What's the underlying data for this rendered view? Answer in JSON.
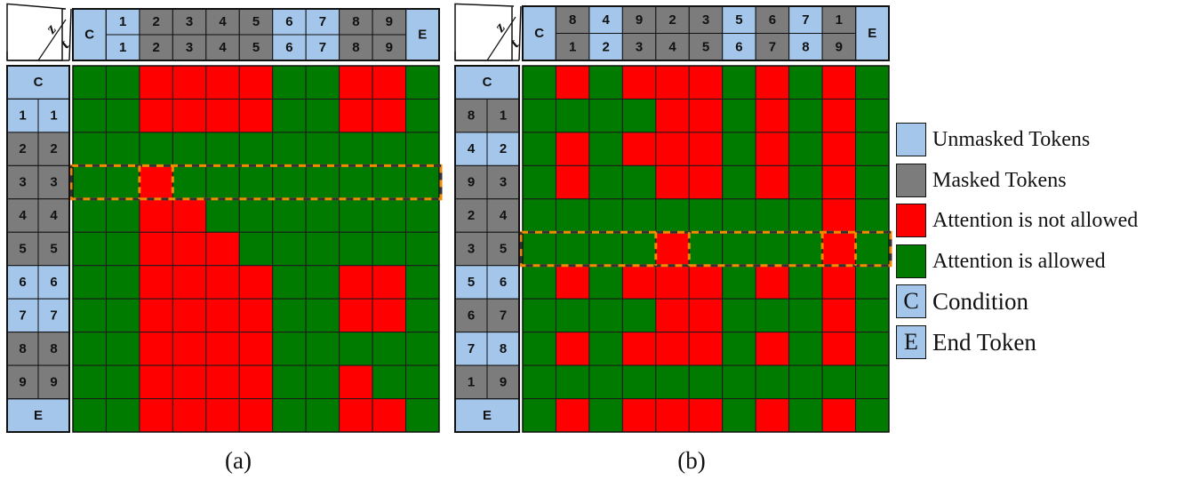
{
  "colors": {
    "unmasked": "#a3c6ea",
    "masked": "#7c7c7c",
    "not_allowed": "#ff0000",
    "allowed": "#007b00",
    "highlight": "#f08a00"
  },
  "axis_labels": {
    "z": "z",
    "t": "t"
  },
  "panels": [
    {
      "caption": "(a)",
      "header": {
        "start": "C",
        "end": "E",
        "z": [
          "1",
          "2",
          "3",
          "4",
          "5",
          "6",
          "7",
          "8",
          "9"
        ],
        "t": [
          "1",
          "2",
          "3",
          "4",
          "5",
          "6",
          "7",
          "8",
          "9"
        ],
        "masked": [
          false,
          true,
          true,
          true,
          true,
          false,
          false,
          true,
          true
        ]
      },
      "rows": {
        "start": "C",
        "end": "E",
        "z": [
          "1",
          "2",
          "3",
          "4",
          "5",
          "6",
          "7",
          "8",
          "9"
        ],
        "t": [
          "1",
          "2",
          "3",
          "4",
          "5",
          "6",
          "7",
          "8",
          "9"
        ],
        "masked": [
          false,
          true,
          true,
          true,
          true,
          false,
          false,
          true,
          true
        ]
      },
      "grid": [
        "GGRRRRGGRRG",
        "GGRRRRGGRRG",
        "GGGGGGGGGGG",
        "GGRGGGGGGGG",
        "GGRRGGGGGGG",
        "GGRRRGGGGGG",
        "GGRRRRGGRRG",
        "GGRRRRGGRRG",
        "GGRRRRGGGGG",
        "GGRRRRGGRGG",
        "GGRRRRGGRRG"
      ],
      "highlight_row": 3
    },
    {
      "caption": "(b)",
      "header": {
        "start": "C",
        "end": "E",
        "z": [
          "8",
          "4",
          "9",
          "2",
          "3",
          "5",
          "6",
          "7",
          "1"
        ],
        "t": [
          "1",
          "2",
          "3",
          "4",
          "5",
          "6",
          "7",
          "8",
          "9"
        ],
        "masked": [
          true,
          false,
          true,
          true,
          true,
          false,
          true,
          false,
          true
        ]
      },
      "rows": {
        "start": "C",
        "end": "E",
        "z": [
          "8",
          "4",
          "9",
          "2",
          "3",
          "5",
          "6",
          "7",
          "1"
        ],
        "t": [
          "1",
          "2",
          "3",
          "4",
          "5",
          "6",
          "7",
          "8",
          "9"
        ],
        "masked": [
          true,
          false,
          true,
          true,
          true,
          false,
          true,
          false,
          true
        ]
      },
      "grid": [
        "GRGRRRGRGRG",
        "GGGGRRGRGRG",
        "GRGRRRGRGRG",
        "GRGGRRGRGRG",
        "GGGGGGGGGRG",
        "GGGGRGGGGRG",
        "GRGRRRGRGRG",
        "GGGGRRGGGRG",
        "GRGRRRGRGRG",
        "GGGGGGGGGGG",
        "GRGRRRGRGRG"
      ],
      "highlight_row": 5
    }
  ],
  "legend": [
    {
      "swatch": "unmasked",
      "glyph": "",
      "label": "Unmasked Tokens"
    },
    {
      "swatch": "masked",
      "glyph": "",
      "label": "Masked Tokens"
    },
    {
      "swatch": "not_allowed",
      "glyph": "",
      "label": "Attention is not allowed"
    },
    {
      "swatch": "allowed",
      "glyph": "",
      "label": "Attention is allowed"
    },
    {
      "swatch": "unmasked",
      "glyph": "C",
      "label": "Condition"
    },
    {
      "swatch": "unmasked",
      "glyph": "E",
      "label": "End Token"
    }
  ]
}
